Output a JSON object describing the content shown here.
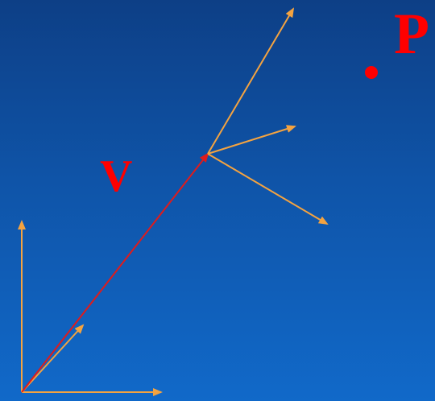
{
  "labels": {
    "vector_label": "V",
    "point_label": "P"
  },
  "colors": {
    "background": "#0f54a8",
    "axis": "#f4a340",
    "vector": "#e01b1b",
    "label": "#ff0000"
  }
}
